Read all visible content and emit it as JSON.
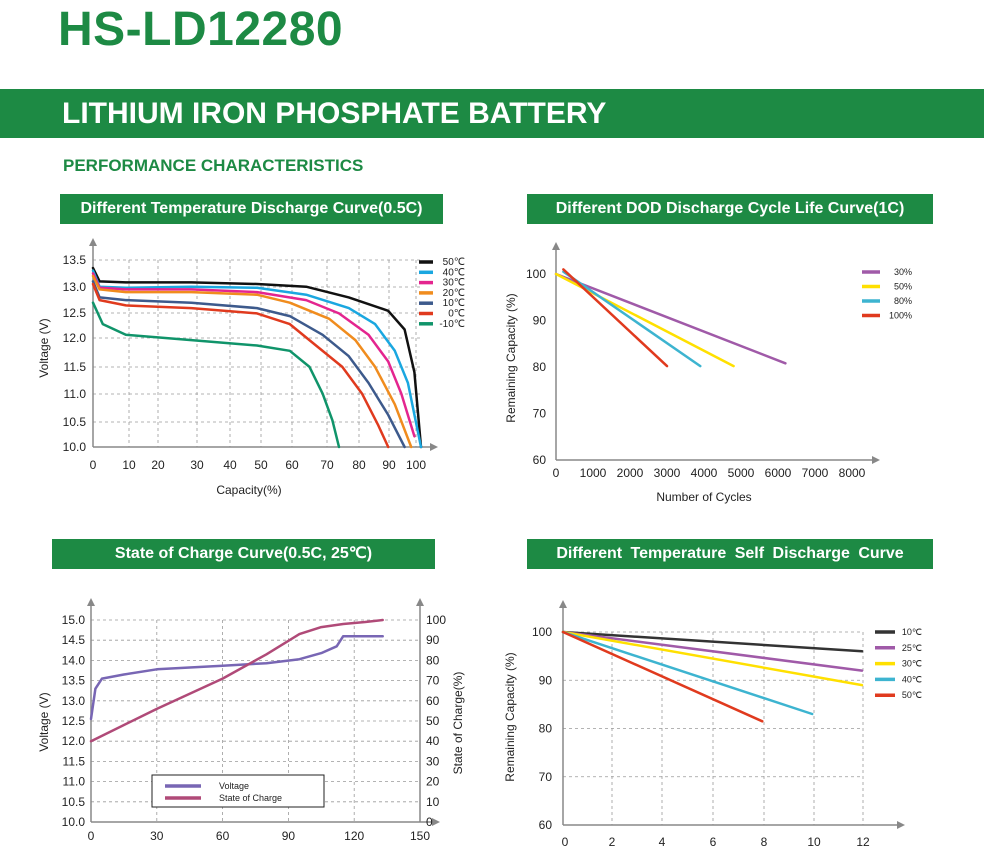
{
  "header": {
    "model": "HS-LD12280",
    "banner": "LITHIUM IRON PHOSPHATE BATTERY",
    "section": "PERFORMANCE CHARACTERISTICS"
  },
  "colors": {
    "brand_green": "#1d8a44"
  },
  "chart_data": [
    {
      "id": "temp_discharge",
      "type": "line",
      "title": "Different Temperature Discharge Curve(0.5C)",
      "xlabel": "Capacity(%)",
      "ylabel": "Voltage (V)",
      "xticks": [
        "0",
        "10",
        "20",
        "30",
        "40",
        "50",
        "60",
        "70",
        "80",
        "90",
        "100"
      ],
      "yticks": [
        "10.0",
        "10.5",
        "11.0",
        "11.5",
        "12.0",
        "12.5",
        "13.0",
        "13.5"
      ],
      "xlim": [
        0,
        100
      ],
      "ylim": [
        10,
        13.5
      ],
      "grid": true,
      "legend_position": "top-right",
      "series": [
        {
          "name": "50℃",
          "color": "#111111",
          "points": [
            [
              0,
              13.35
            ],
            [
              2,
              13.1
            ],
            [
              10,
              13.08
            ],
            [
              30,
              13.08
            ],
            [
              50,
              13.05
            ],
            [
              65,
              13.0
            ],
            [
              78,
              12.8
            ],
            [
              90,
              12.55
            ],
            [
              95,
              12.2
            ],
            [
              98,
              11.4
            ],
            [
              100,
              10.0
            ]
          ]
        },
        {
          "name": "40℃",
          "color": "#1aa7e0",
          "points": [
            [
              0,
              13.3
            ],
            [
              2,
              13.0
            ],
            [
              10,
              12.98
            ],
            [
              30,
              13.0
            ],
            [
              50,
              12.98
            ],
            [
              65,
              12.85
            ],
            [
              78,
              12.6
            ],
            [
              86,
              12.3
            ],
            [
              92,
              11.8
            ],
            [
              96,
              11.2
            ],
            [
              100,
              10.0
            ]
          ]
        },
        {
          "name": "30℃",
          "color": "#e4258f",
          "points": [
            [
              0,
              13.25
            ],
            [
              2,
              12.98
            ],
            [
              10,
              12.95
            ],
            [
              30,
              12.95
            ],
            [
              50,
              12.9
            ],
            [
              65,
              12.75
            ],
            [
              75,
              12.5
            ],
            [
              84,
              12.1
            ],
            [
              90,
              11.6
            ],
            [
              94,
              11.0
            ],
            [
              98,
              10.2
            ]
          ]
        },
        {
          "name": "20℃",
          "color": "#f08c1e",
          "points": [
            [
              0,
              13.2
            ],
            [
              2,
              12.95
            ],
            [
              10,
              12.9
            ],
            [
              30,
              12.9
            ],
            [
              50,
              12.85
            ],
            [
              60,
              12.7
            ],
            [
              72,
              12.4
            ],
            [
              80,
              12.0
            ],
            [
              86,
              11.5
            ],
            [
              92,
              10.8
            ],
            [
              97,
              10.0
            ]
          ]
        },
        {
          "name": "10℃",
          "color": "#3d5a8c",
          "points": [
            [
              0,
              13.1
            ],
            [
              2,
              12.8
            ],
            [
              10,
              12.75
            ],
            [
              30,
              12.7
            ],
            [
              50,
              12.6
            ],
            [
              60,
              12.45
            ],
            [
              70,
              12.1
            ],
            [
              78,
              11.7
            ],
            [
              84,
              11.2
            ],
            [
              90,
              10.6
            ],
            [
              95,
              10.0
            ]
          ]
        },
        {
          "name": "0℃",
          "color": "#e03a1e",
          "points": [
            [
              0,
              13.05
            ],
            [
              2,
              12.75
            ],
            [
              10,
              12.65
            ],
            [
              30,
              12.6
            ],
            [
              50,
              12.5
            ],
            [
              60,
              12.3
            ],
            [
              68,
              11.9
            ],
            [
              76,
              11.5
            ],
            [
              82,
              11.0
            ],
            [
              87,
              10.4
            ],
            [
              90,
              10.0
            ]
          ]
        },
        {
          "name": "-10℃",
          "color": "#10946a",
          "points": [
            [
              0,
              12.7
            ],
            [
              3,
              12.3
            ],
            [
              10,
              12.1
            ],
            [
              30,
              12.0
            ],
            [
              50,
              11.9
            ],
            [
              60,
              11.8
            ],
            [
              66,
              11.5
            ],
            [
              70,
              11.0
            ],
            [
              73,
              10.5
            ],
            [
              75,
              10.0
            ]
          ]
        }
      ]
    },
    {
      "id": "dod_cycle",
      "type": "line",
      "title": "Different DOD Discharge Cycle Life Curve(1C)",
      "xlabel": "Number of Cycles",
      "ylabel": "Remaining Capacity (%)",
      "xticks": [
        "0",
        "1000",
        "2000",
        "3000",
        "4000",
        "5000",
        "6000",
        "7000",
        "8000"
      ],
      "yticks": [
        "60",
        "70",
        "80",
        "90",
        "100"
      ],
      "xlim": [
        0,
        8000
      ],
      "ylim": [
        60,
        100
      ],
      "grid": false,
      "legend_position": "top-right",
      "series": [
        {
          "name": "30%",
          "color": "#a05aa8",
          "points": [
            [
              0,
              100
            ],
            [
              6200,
              80.8
            ]
          ]
        },
        {
          "name": "50%",
          "color": "#ffe000",
          "points": [
            [
              0,
              100
            ],
            [
              4800,
              80.2
            ]
          ]
        },
        {
          "name": "80%",
          "color": "#3db4d0",
          "points": [
            [
              200,
              100.5
            ],
            [
              3900,
              80.2
            ]
          ]
        },
        {
          "name": "100%",
          "color": "#e03a1e",
          "points": [
            [
              200,
              101
            ],
            [
              3000,
              80.2
            ]
          ]
        }
      ]
    },
    {
      "id": "state_of_charge",
      "type": "line",
      "title": "State of Charge Curve(0.5C, 25℃)",
      "xlabel": "",
      "ylabel": "Voltage (V)",
      "y2label": "State of Charge(%)",
      "xticks": [
        "0",
        "30",
        "60",
        "90",
        "120",
        "150"
      ],
      "yticks": [
        "10.0",
        "10.5",
        "11.0",
        "11.5",
        "12.0",
        "12.5",
        "13.0",
        "13.5",
        "14.0",
        "14.5",
        "15.0"
      ],
      "y2ticks": [
        "0",
        "10",
        "20",
        "30",
        "40",
        "50",
        "60",
        "70",
        "80",
        "90",
        "100"
      ],
      "xlim": [
        0,
        150
      ],
      "ylim": [
        10,
        15
      ],
      "y2lim": [
        0,
        100
      ],
      "grid": true,
      "legend_position": "bottom-center",
      "series": [
        {
          "name": "Voltage",
          "color": "#7866b4",
          "axis": "left",
          "points": [
            [
              0,
              12.55
            ],
            [
              2,
              13.3
            ],
            [
              5,
              13.55
            ],
            [
              15,
              13.65
            ],
            [
              30,
              13.78
            ],
            [
              60,
              13.87
            ],
            [
              80,
              13.93
            ],
            [
              95,
              14.03
            ],
            [
              105,
              14.18
            ],
            [
              112,
              14.35
            ],
            [
              115,
              14.6
            ],
            [
              133,
              14.6
            ]
          ]
        },
        {
          "name": "State of Charge",
          "color": "#b04a78",
          "axis": "right",
          "points": [
            [
              0,
              40
            ],
            [
              30,
              56
            ],
            [
              60,
              71
            ],
            [
              80,
              83
            ],
            [
              95,
              93
            ],
            [
              105,
              96.5
            ],
            [
              115,
              98
            ],
            [
              125,
              99
            ],
            [
              133,
              100
            ]
          ]
        }
      ]
    },
    {
      "id": "self_discharge",
      "type": "line",
      "title": "Different Temperature Self Discharge Curve",
      "xlabel": "",
      "ylabel": "Remaining Capacity (%)",
      "xticks": [
        "0",
        "2",
        "4",
        "6",
        "8",
        "10",
        "12"
      ],
      "yticks": [
        "60",
        "70",
        "80",
        "90",
        "100"
      ],
      "xlim": [
        0,
        12
      ],
      "ylim": [
        60,
        100
      ],
      "grid": true,
      "legend_position": "top-right",
      "series": [
        {
          "name": "10℃",
          "color": "#333333",
          "points": [
            [
              0,
              100
            ],
            [
              12,
              96
            ]
          ]
        },
        {
          "name": "25℃",
          "color": "#a05aa8",
          "points": [
            [
              0,
              100
            ],
            [
              12,
              92
            ]
          ]
        },
        {
          "name": "30℃",
          "color": "#ffe000",
          "points": [
            [
              0,
              100
            ],
            [
              12,
              89
            ]
          ]
        },
        {
          "name": "40℃",
          "color": "#3db4d0",
          "points": [
            [
              0,
              100
            ],
            [
              10,
              83
            ]
          ]
        },
        {
          "name": "50℃",
          "color": "#e03a1e",
          "points": [
            [
              0,
              100
            ],
            [
              8,
              81.5
            ]
          ]
        }
      ]
    }
  ]
}
